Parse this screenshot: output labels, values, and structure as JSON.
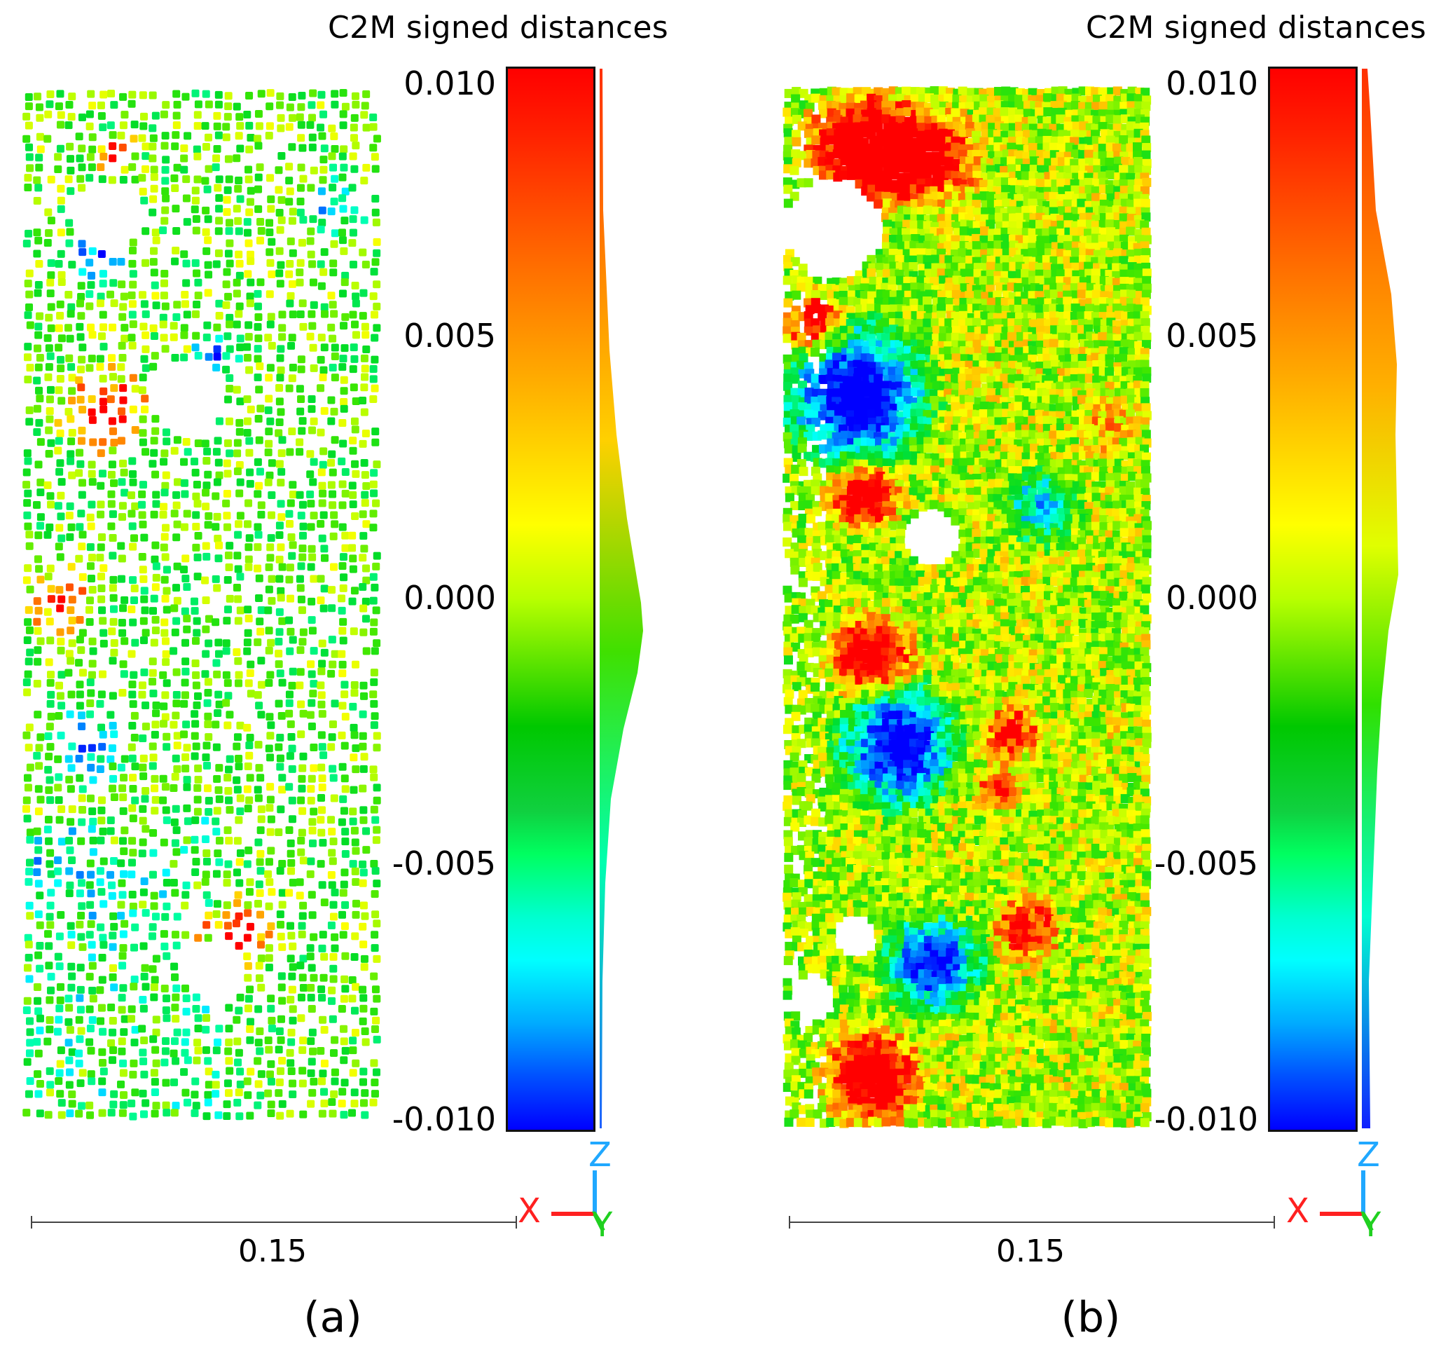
{
  "panels": [
    {
      "id": "a",
      "title": "C2M signed distances",
      "colorbar_ticks": [
        "0.010",
        "0.005",
        "0.000",
        "-0.005",
        "-0.010"
      ],
      "axes": {
        "x": "X",
        "y": "Y",
        "z": "Z"
      },
      "scale_label": "0.15",
      "figure_label": "(a)"
    },
    {
      "id": "b",
      "title": "C2M signed distances",
      "colorbar_ticks": [
        "0.010",
        "0.005",
        "0.000",
        "-0.005",
        "-0.010"
      ],
      "axes": {
        "x": "X",
        "y": "Y",
        "z": "Z"
      },
      "scale_label": "0.15",
      "figure_label": "(b)"
    }
  ],
  "colors": {
    "axis_x": "#ff2020",
    "axis_y": "#20d020",
    "axis_z": "#20a8ff",
    "scale_line": "#444444"
  }
}
